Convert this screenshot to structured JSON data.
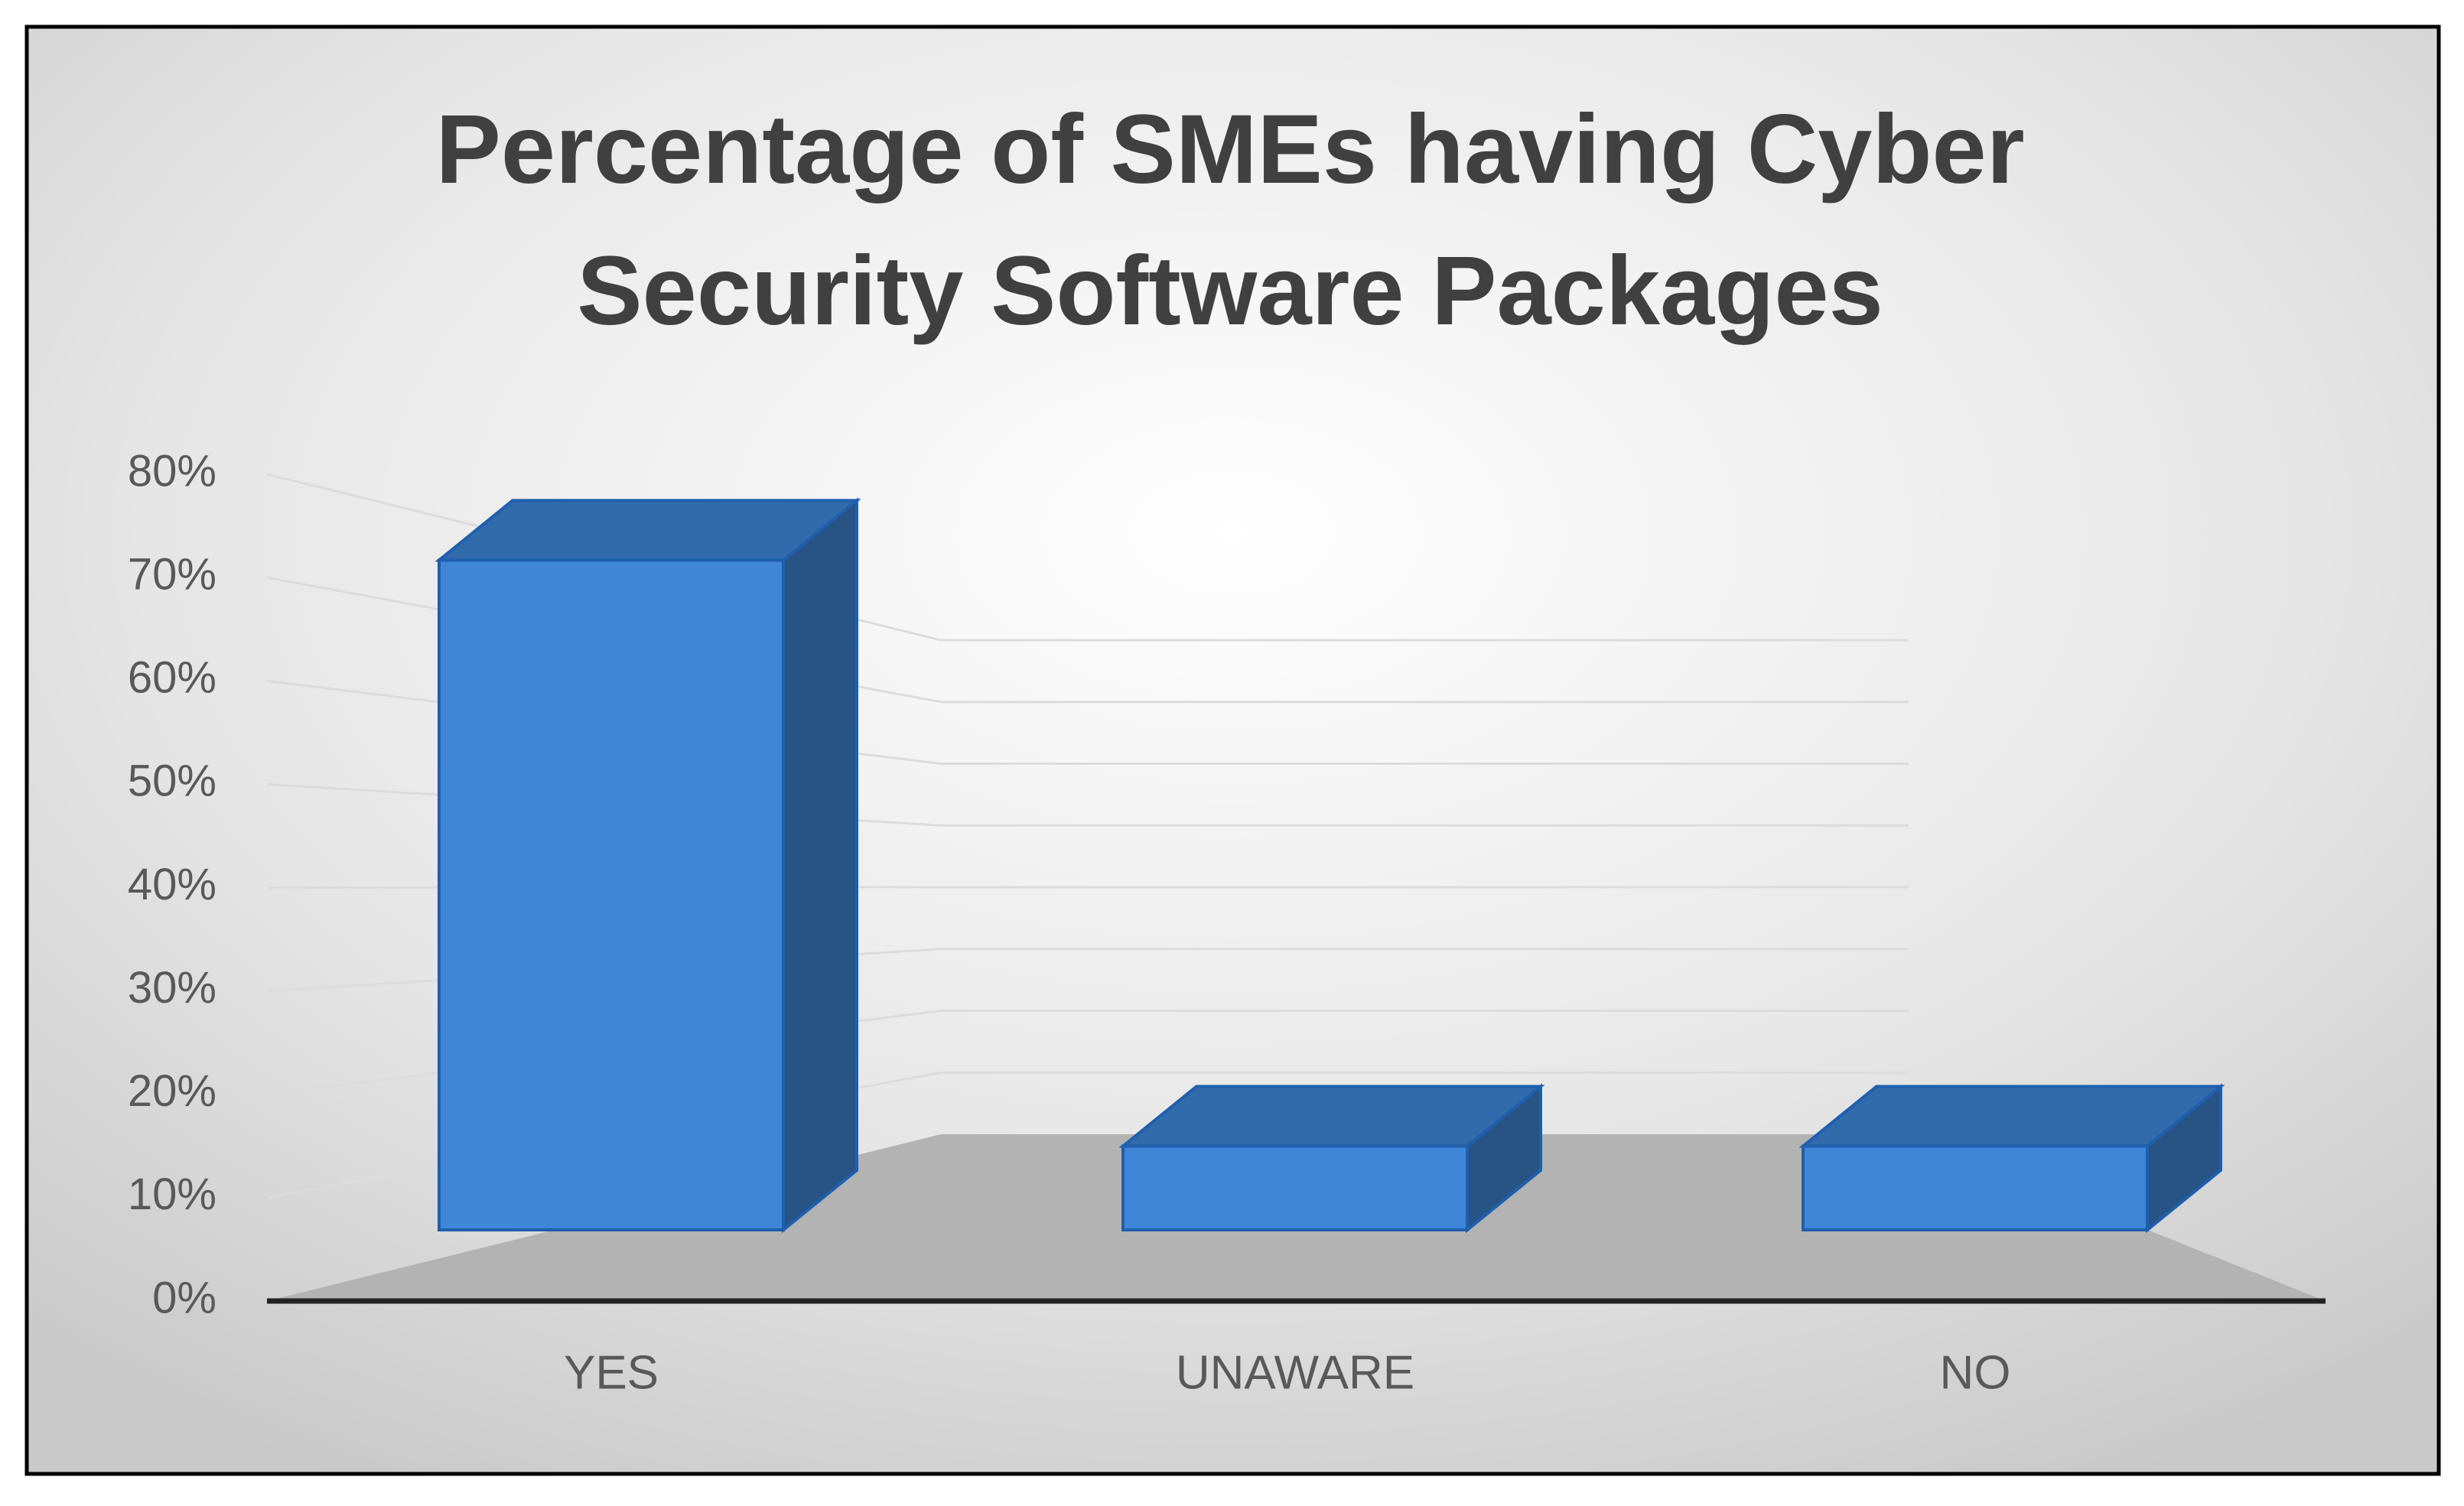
{
  "chart_data": {
    "type": "bar3d",
    "title": "Percentage of SMEs having Cyber Security Software Packages",
    "categories": [
      "YES",
      "UNAWARE",
      "NO"
    ],
    "values": [
      72,
      9,
      9
    ],
    "color": "#3f86d6",
    "ylim": [
      0,
      80
    ],
    "yticks": [
      {
        "value": 0,
        "label": "0%"
      },
      {
        "value": 10,
        "label": "10%"
      },
      {
        "value": 20,
        "label": "20%"
      },
      {
        "value": 30,
        "label": "30%"
      },
      {
        "value": 40,
        "label": "40%"
      },
      {
        "value": 50,
        "label": "50%"
      },
      {
        "value": 60,
        "label": "60%"
      },
      {
        "value": 70,
        "label": "70%"
      },
      {
        "value": 80,
        "label": "80%"
      }
    ],
    "grid": true
  }
}
